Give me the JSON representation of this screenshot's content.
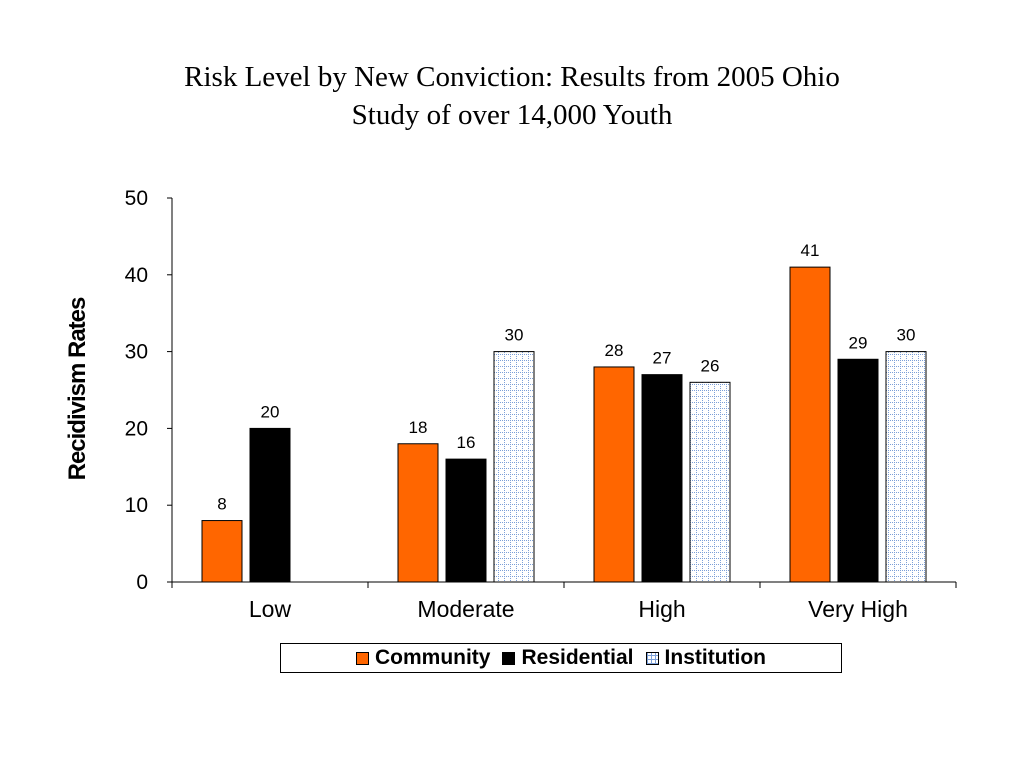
{
  "chart_data": {
    "type": "bar",
    "title": "Risk Level by New Conviction: Results from 2005 Ohio Study of over 14,000 Youth",
    "title_lines": [
      "Risk Level by New Conviction: Results from 2005 Ohio",
      "Study of over 14,000 Youth"
    ],
    "ylabel": "Recidivism Rates",
    "xlabel": "",
    "ylim": [
      0,
      50
    ],
    "yticks": [
      0,
      10,
      20,
      30,
      40,
      50
    ],
    "categories": [
      "Low",
      "Moderate",
      "High",
      "Very High"
    ],
    "series": [
      {
        "name": "Community",
        "values": [
          8,
          18,
          28,
          41
        ],
        "color": "#ff6600",
        "pattern": "solid"
      },
      {
        "name": "Residential",
        "values": [
          20,
          16,
          27,
          29
        ],
        "color": "#000000",
        "pattern": "solid"
      },
      {
        "name": "Institution",
        "values": [
          null,
          30,
          26,
          30
        ],
        "color": "#ffffff",
        "pattern": "blue-dotted-grid"
      }
    ],
    "grid": false,
    "legend": "bottom",
    "data_labels": true
  }
}
